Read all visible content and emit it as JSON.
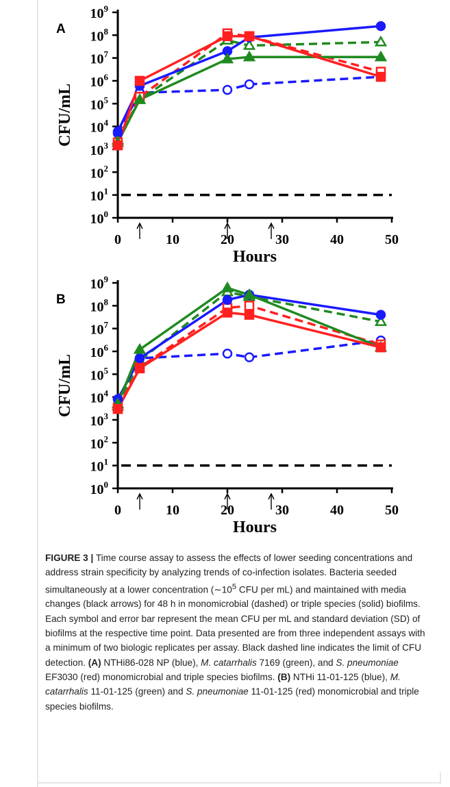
{
  "chart_data": [
    {
      "type": "line",
      "panel_label": "A",
      "xlabel": "Hours",
      "ylabel": "CFU/mL",
      "xlim": [
        0,
        50
      ],
      "xticks": [
        0,
        10,
        20,
        30,
        40,
        50
      ],
      "y_scale": "log",
      "ylim": [
        1,
        1000000000
      ],
      "yticks": [
        {
          "base": "10",
          "exp": "0",
          "value": 1
        },
        {
          "base": "10",
          "exp": "1",
          "value": 10
        },
        {
          "base": "10",
          "exp": "2",
          "value": 100
        },
        {
          "base": "10",
          "exp": "3",
          "value": 1000
        },
        {
          "base": "10",
          "exp": "4",
          "value": 10000
        },
        {
          "base": "10",
          "exp": "5",
          "value": 100000
        },
        {
          "base": "10",
          "exp": "6",
          "value": 1000000
        },
        {
          "base": "10",
          "exp": "7",
          "value": 10000000
        },
        {
          "base": "10",
          "exp": "8",
          "value": 100000000
        },
        {
          "base": "10",
          "exp": "9",
          "value": 1000000000
        }
      ],
      "media_change_arrows_hours": [
        4,
        20,
        28
      ],
      "detection_limit": 10,
      "series": [
        {
          "color": "#1a1aff",
          "style": "dashed",
          "marker": "open-circle",
          "x": [
            0,
            4,
            20,
            24,
            48
          ],
          "y": [
            5000,
            300000,
            400000,
            700000,
            1500000
          ]
        },
        {
          "color": "#1f8a1f",
          "style": "dashed",
          "marker": "open-triangle",
          "x": [
            0,
            4,
            20,
            24,
            48
          ],
          "y": [
            2500,
            150000,
            60000000,
            35000000,
            50000000
          ]
        },
        {
          "color": "#ff2020",
          "style": "dashed",
          "marker": "open-square",
          "x": [
            0,
            4,
            20,
            24,
            48
          ],
          "y": [
            2000,
            200000,
            120000000,
            90000000,
            2500000
          ]
        },
        {
          "color": "#1a1aff",
          "style": "solid",
          "marker": "filled-circle",
          "x": [
            0,
            4,
            20,
            24,
            48
          ],
          "y": [
            6000,
            600000,
            20000000,
            80000000,
            250000000
          ]
        },
        {
          "color": "#1f8a1f",
          "style": "solid",
          "marker": "filled-triangle",
          "x": [
            0,
            4,
            20,
            24,
            48
          ],
          "y": [
            2000,
            150000,
            9000000,
            11000000,
            11000000
          ]
        },
        {
          "color": "#ff2020",
          "style": "solid",
          "marker": "filled-square",
          "x": [
            0,
            4,
            20,
            24,
            48
          ],
          "y": [
            1500,
            1000000,
            90000000,
            90000000,
            1500000
          ]
        }
      ]
    },
    {
      "type": "line",
      "panel_label": "B",
      "xlabel": "Hours",
      "ylabel": "CFU/mL",
      "xlim": [
        0,
        50
      ],
      "xticks": [
        0,
        10,
        20,
        30,
        40,
        50
      ],
      "y_scale": "log",
      "ylim": [
        1,
        1000000000
      ],
      "yticks": [
        {
          "base": "10",
          "exp": "0",
          "value": 1
        },
        {
          "base": "10",
          "exp": "1",
          "value": 10
        },
        {
          "base": "10",
          "exp": "2",
          "value": 100
        },
        {
          "base": "10",
          "exp": "3",
          "value": 1000
        },
        {
          "base": "10",
          "exp": "4",
          "value": 10000
        },
        {
          "base": "10",
          "exp": "5",
          "value": 100000
        },
        {
          "base": "10",
          "exp": "6",
          "value": 1000000
        },
        {
          "base": "10",
          "exp": "7",
          "value": 10000000
        },
        {
          "base": "10",
          "exp": "8",
          "value": 100000000
        },
        {
          "base": "10",
          "exp": "9",
          "value": 1000000000
        }
      ],
      "media_change_arrows_hours": [
        4,
        20,
        28
      ],
      "detection_limit": 10,
      "series": [
        {
          "color": "#1a1aff",
          "style": "dashed",
          "marker": "open-circle",
          "x": [
            0,
            4,
            20,
            24,
            48
          ],
          "y": [
            8000,
            500000,
            800000,
            550000,
            3000000
          ]
        },
        {
          "color": "#1f8a1f",
          "style": "dashed",
          "marker": "open-triangle",
          "x": [
            0,
            4,
            20,
            24,
            48
          ],
          "y": [
            4000,
            400000,
            400000000,
            250000000,
            20000000
          ]
        },
        {
          "color": "#ff2020",
          "style": "dashed",
          "marker": "open-square",
          "x": [
            0,
            4,
            20,
            24,
            48
          ],
          "y": [
            3500,
            200000,
            80000000,
            100000000,
            2000000
          ]
        },
        {
          "color": "#1a1aff",
          "style": "solid",
          "marker": "filled-circle",
          "x": [
            0,
            4,
            20,
            24,
            48
          ],
          "y": [
            8000,
            500000,
            180000000,
            300000000,
            40000000
          ]
        },
        {
          "color": "#1f8a1f",
          "style": "solid",
          "marker": "filled-triangle",
          "x": [
            0,
            4,
            20,
            24,
            48
          ],
          "y": [
            5000,
            1200000,
            600000000,
            300000000,
            1500000
          ]
        },
        {
          "color": "#ff2020",
          "style": "solid",
          "marker": "filled-square",
          "x": [
            0,
            4,
            20,
            24,
            48
          ],
          "y": [
            3000,
            180000,
            50000000,
            40000000,
            1500000
          ]
        }
      ]
    }
  ],
  "caption": {
    "label": "FIGURE 3 |",
    "part1": "Time course assay to assess the effects of lower seeding concentrations and address strain specificity by analyzing trends of co-infection isolates. Bacteria seeded simultaneously at a lower concentration (∼10",
    "sup": "5",
    "part2": " CFU per mL) and maintained with media changes (black arrows) for 48 h in monomicrobial (dashed) or triple species (solid) biofilms. Each symbol and error bar represent the mean CFU per mL and standard deviation (SD) of biofilms at the respective time point. Data presented are from three independent assays with a minimum of two biologic replicates per assay. Black dashed line indicates the limit of CFU detection.",
    "a_label": "(A)",
    "a_text1": " NTHi86-028 NP (blue), ",
    "a_italic1": "M. catarrhalis",
    "a_text2": " 7169 (green), and ",
    "a_italic2": "S. pneumoniae",
    "a_text3": " EF3030 (red) monomicrobial and triple species biofilms.",
    "b_label": "(B)",
    "b_text1": " NTHi 11-01-125 (blue), ",
    "b_italic1": "M. catarrhalis",
    "b_text2": " 11-01-125 (green) and ",
    "b_italic2": "S. pneumoniae",
    "b_text3": " 11-01-125 (red) monomicrobial and triple species biofilms."
  }
}
